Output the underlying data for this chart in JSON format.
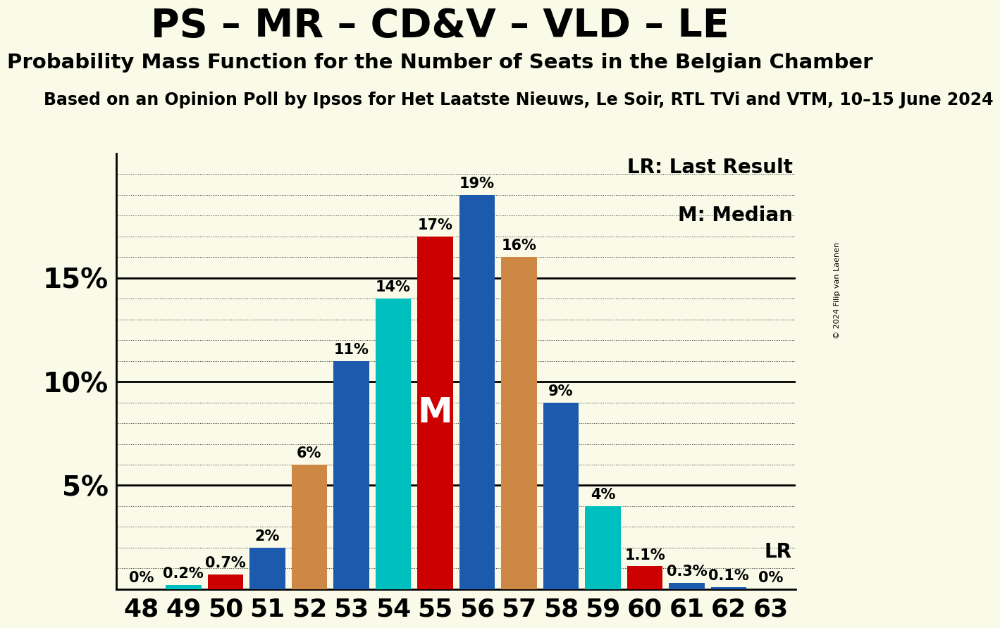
{
  "title": "PS – MR – CD&V – VLD – LE",
  "subtitle": "Probability Mass Function for the Number of Seats in the Belgian Chamber",
  "source_line": "Based on an Opinion Poll by Ipsos for Het Laatste Nieuws, Le Soir, RTL TVi and VTM, 10–15 June 2024",
  "copyright": "© 2024 Filip van Laenen",
  "seats": [
    48,
    49,
    50,
    51,
    52,
    53,
    54,
    55,
    56,
    57,
    58,
    59,
    60,
    61,
    62,
    63
  ],
  "probabilities": [
    0.0,
    0.2,
    0.7,
    2.0,
    6.0,
    11.0,
    14.0,
    17.0,
    19.0,
    16.0,
    9.0,
    4.0,
    1.1,
    0.3,
    0.1,
    0.0
  ],
  "bar_colors": [
    "#00BFBF",
    "#00BFBF",
    "#CC0000",
    "#1B5AAD",
    "#CC8844",
    "#1B5AAD",
    "#00BFBF",
    "#CC0000",
    "#1B5AAD",
    "#CC8844",
    "#1B5AAD",
    "#00BFBF",
    "#CC0000",
    "#1B5AAD",
    "#1B5AAD",
    "#1B5AAD"
  ],
  "median_seat": 55,
  "lr_seat": 60,
  "background_color": "#FAFAE8",
  "ylim": [
    0,
    21
  ],
  "lr_label": "LR",
  "median_label": "M",
  "legend_lr": "LR: Last Result",
  "legend_m": "M: Median",
  "bar_label_fontsize": 15,
  "title_fontsize": 40,
  "subtitle_fontsize": 21,
  "source_fontsize": 17,
  "axis_tick_fontsize": 26,
  "ytick_fontsize": 28,
  "median_fontsize": 36,
  "lr_text_fontsize": 20,
  "legend_fontsize": 20
}
